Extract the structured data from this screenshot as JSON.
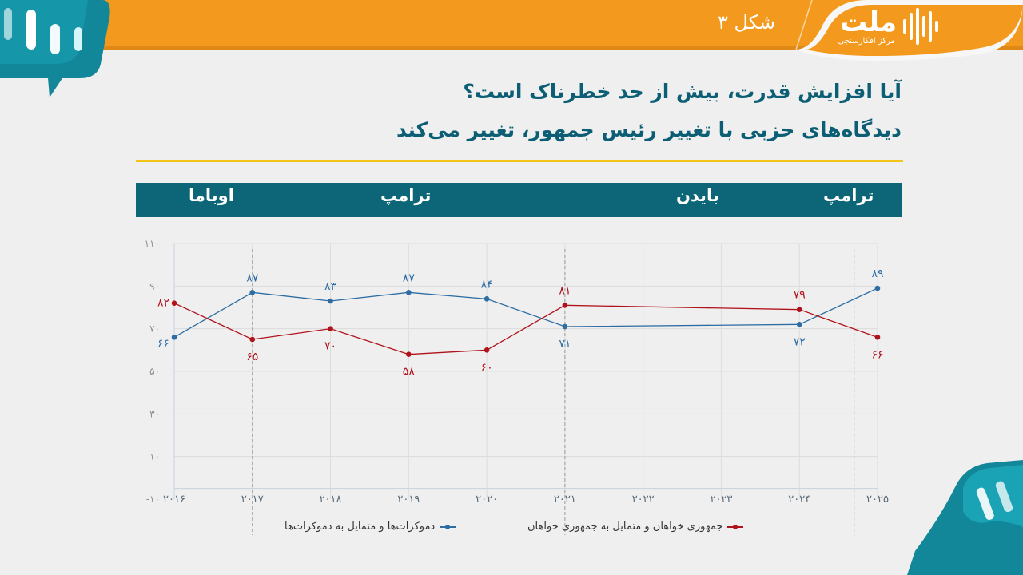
{
  "header": {
    "brand": "ملت",
    "brand_tagline": "مرکز افکارسنجی",
    "figure_label": "شکل ۳"
  },
  "titles": {
    "line1": "آیا افزایش قدرت، بیش از حد خطرناک است؟",
    "line2": "دیدگاه‌های حزبی با تغییر رئیس جمهور، تغییر می‌کند"
  },
  "eras": [
    {
      "label": "اوباما",
      "from": 2016,
      "to": 2017
    },
    {
      "label": "ترامپ",
      "from": 2017,
      "to": 2021
    },
    {
      "label": "بایدن",
      "from": 2021,
      "to": 2024.7
    },
    {
      "label": "ترامپ",
      "from": 2024.7,
      "to": 2025
    }
  ],
  "colors": {
    "top_bar": "#f39a1e",
    "title": "#0b5e73",
    "era_bar": "#0d6677",
    "rule": "#f2c318",
    "democrats": "#2e6da4",
    "republicans": "#b0121b"
  },
  "chart_data": {
    "type": "line",
    "x": [
      2016,
      2017,
      2018,
      2019,
      2020,
      2021,
      2022,
      2023,
      2024,
      2025
    ],
    "x_tick_labels": [
      "۲۰۱۶",
      "۲۰۱۷",
      "۲۰۱۸",
      "۲۰۱۹",
      "۲۰۲۰",
      "۲۰۲۱",
      "۲۰۲۲",
      "۲۰۲۳",
      "۲۰۲۴",
      "۲۰۲۵"
    ],
    "ylim": [
      -10,
      110
    ],
    "y_ticks": [
      -10,
      10,
      30,
      50,
      70,
      90,
      110
    ],
    "y_tick_labels": [
      "-۱۰",
      "۱۰",
      "۳۰",
      "۵۰",
      "۷۰",
      "۹۰",
      "۱۱۰"
    ],
    "grid": true,
    "legend_position": "bottom",
    "era_dividers": [
      2017,
      2021,
      2024.7
    ],
    "series": [
      {
        "name": "دموکرات‌ها و متمایل به دموکرات‌ها",
        "color": "#2e6da4",
        "x": [
          2016,
          2017,
          2018,
          2019,
          2020,
          2021,
          2024,
          2025
        ],
        "values": [
          66,
          87,
          83,
          87,
          84,
          71,
          72,
          89
        ],
        "labels": [
          "۶۶",
          "۸۷",
          "۸۳",
          "۸۷",
          "۸۴",
          "۷۱",
          "۷۲",
          "۸۹"
        ],
        "label_pos": [
          "below",
          "above",
          "above",
          "above",
          "above",
          "below",
          "below",
          "above"
        ]
      },
      {
        "name": "جمهوری خواهان و متمایل به جمهوری خواهان",
        "color": "#b0121b",
        "x": [
          2016,
          2017,
          2018,
          2019,
          2020,
          2021,
          2024,
          2025
        ],
        "values": [
          82,
          65,
          70,
          58,
          60,
          81,
          79,
          66
        ],
        "labels": [
          "۸۲",
          "۶۵",
          "۷۰",
          "۵۸",
          "۶۰",
          "۸۱",
          "۷۹",
          "۶۶"
        ],
        "label_pos": [
          "left",
          "below",
          "below",
          "below",
          "below",
          "above",
          "above",
          "below"
        ]
      }
    ]
  }
}
